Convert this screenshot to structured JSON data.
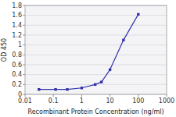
{
  "chart_data": {
    "type": "line",
    "x": [
      0.031,
      0.12,
      0.31,
      1.0,
      3.0,
      5.0,
      10.0,
      30.0,
      100.0
    ],
    "values": [
      0.1,
      0.1,
      0.1,
      0.13,
      0.2,
      0.25,
      0.5,
      1.1,
      1.62
    ],
    "color": "#3333aa",
    "marker": "square",
    "xlabel": "Recombinant Protein Concentration (ng/ml)",
    "ylabel": "OD 450",
    "log": "x",
    "xlim": [
      0.01,
      1000
    ],
    "ylim": [
      0,
      1.8
    ],
    "xticks": [
      0.01,
      0.1,
      1,
      10,
      100,
      1000
    ],
    "yticks": [
      0,
      0.2,
      0.4,
      0.6,
      0.8,
      1,
      1.2,
      1.4,
      1.6,
      1.8
    ],
    "grid": true
  }
}
